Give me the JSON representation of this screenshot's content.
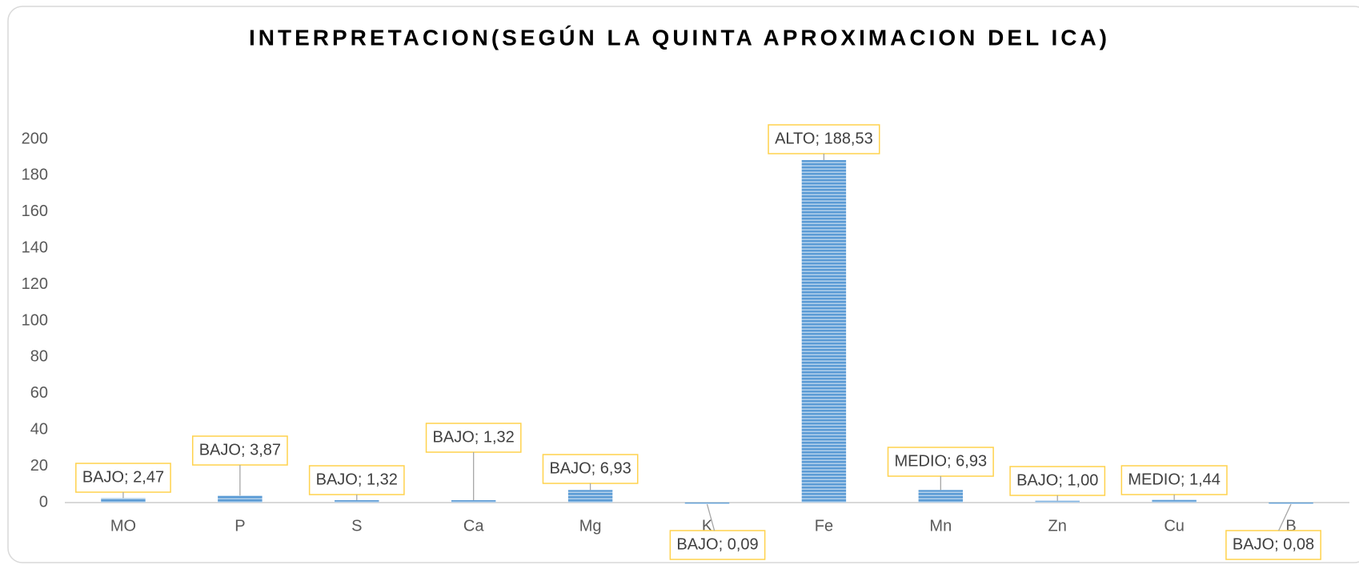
{
  "chart_data": {
    "type": "bar",
    "title": "INTERPRETACION(SEGÚN LA QUINTA APROXIMACION DEL ICA)",
    "categories": [
      "MO",
      "P",
      "S",
      "Ca",
      "Mg",
      "K",
      "Fe",
      "Mn",
      "Zn",
      "Cu",
      "B"
    ],
    "values": [
      2.47,
      3.87,
      1.32,
      1.32,
      6.93,
      0.09,
      188.53,
      6.93,
      1.0,
      1.44,
      0.08
    ],
    "value_labels": [
      "BAJO; 2,47",
      "BAJO; 3,87",
      "BAJO; 1,32",
      "BAJO; 1,32",
      "BAJO; 6,93",
      "BAJO; 0,09",
      "ALTO; 188,53",
      "MEDIO; 6,93",
      "BAJO; 1,00",
      "MEDIO; 1,44",
      "BAJO; 0,08"
    ],
    "color": "#5b9bd5",
    "ylim": [
      0,
      200
    ],
    "yticks": [
      0,
      20,
      40,
      60,
      80,
      100,
      120,
      140,
      160,
      180,
      200
    ],
    "grid": false
  }
}
